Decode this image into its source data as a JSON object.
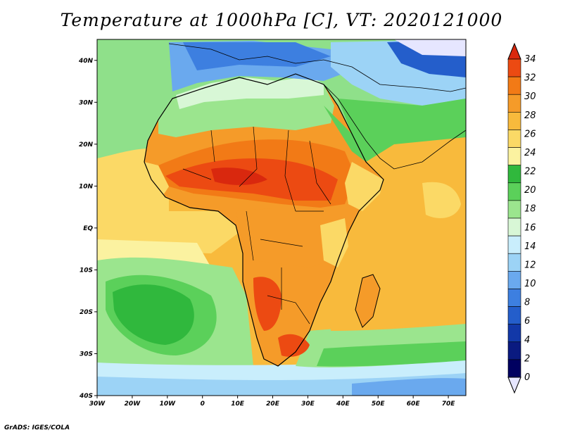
{
  "title": "Temperature at 1000hPa [C], VT: 2020121000",
  "credit": "GrADS: IGES/COLA",
  "map": {
    "lon_ticks": [
      "30W",
      "20W",
      "10W",
      "0",
      "10E",
      "20E",
      "30E",
      "40E",
      "50E",
      "60E",
      "70E"
    ],
    "lat_ticks": [
      "40N",
      "30N",
      "20N",
      "10N",
      "EQ",
      "10S",
      "20S",
      "30S",
      "40S"
    ]
  },
  "colorbar": {
    "levels": [
      "34",
      "32",
      "30",
      "28",
      "26",
      "24",
      "22",
      "20",
      "18",
      "16",
      "14",
      "12",
      "10",
      "8",
      "6",
      "4",
      "2",
      "0"
    ],
    "colors": [
      "#d9280e",
      "#ec4a12",
      "#f27a16",
      "#f59b29",
      "#f8ba3c",
      "#fbd966",
      "#fbf2a0",
      "#30b83d",
      "#5bd05a",
      "#9be58e",
      "#d8f7d6",
      "#c9eefc",
      "#9cd3f6",
      "#6aa9ee",
      "#3d7fe0",
      "#245ecb",
      "#1238a8",
      "#0a1a80",
      "#000060"
    ],
    "top_color": "#d9280e",
    "bottom_color": "#e6e6ff"
  },
  "palette": {
    "ocean_n_cool": "#8fe08a",
    "ocean_mid": "#fbd966",
    "ocean_warm": "#f8ba3c",
    "ocean_s_cool": "#5bd05a",
    "ocean_far_south": "#9cd3f6",
    "sahara_north": "#6aa9ee",
    "sahel_hot": "#ec4a12",
    "central": "#f59b29",
    "kalahari": "#ec4a12",
    "mediterranean": "#3d7fe0",
    "border": "#000000"
  },
  "chart_data": {
    "type": "heatmap",
    "title": "Temperature at 1000hPa [C], VT: 2020121000",
    "variable": "Temperature at 1000hPa",
    "units": "C",
    "valid_time": "2020121000",
    "lon_range": [
      -30,
      75
    ],
    "lat_range": [
      -40,
      45
    ],
    "contour_levels": [
      0,
      2,
      4,
      6,
      8,
      10,
      12,
      14,
      16,
      18,
      20,
      22,
      24,
      26,
      28,
      30,
      32,
      34
    ]
  }
}
